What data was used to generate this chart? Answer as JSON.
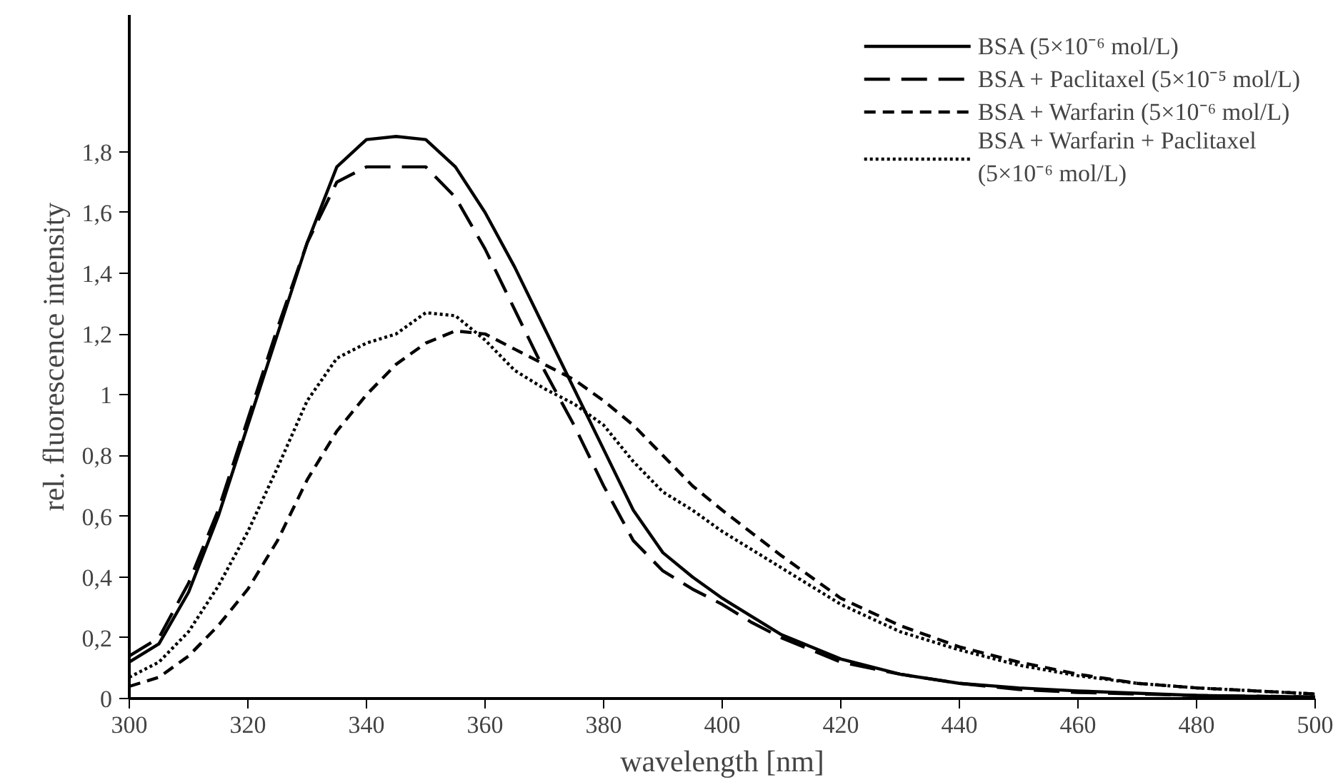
{
  "chart_data": {
    "type": "line",
    "xlabel": "wavelength [nm]",
    "ylabel": "rel. fluorescence intensity",
    "xlim": [
      300,
      500
    ],
    "ylim": [
      0,
      2.25
    ],
    "xticks": [
      300,
      320,
      340,
      360,
      380,
      400,
      420,
      440,
      460,
      480,
      500
    ],
    "yticks": [
      0,
      {
        "value": 0.2,
        "label": "0,2"
      },
      {
        "value": 0.4,
        "label": "0,4"
      },
      {
        "value": 0.6,
        "label": "0,6"
      },
      {
        "value": 0.8,
        "label": "0,8"
      },
      1,
      {
        "value": 1.2,
        "label": "1,2"
      },
      {
        "value": 1.4,
        "label": "1,4"
      },
      {
        "value": 1.6,
        "label": "1,6"
      },
      {
        "value": 1.8,
        "label": "1,8"
      }
    ],
    "grid": false,
    "legend": "top right",
    "marker": "none",
    "x": [
      300,
      305,
      310,
      315,
      320,
      325,
      330,
      335,
      340,
      345,
      350,
      355,
      360,
      365,
      370,
      375,
      380,
      385,
      390,
      395,
      400,
      405,
      410,
      420,
      430,
      440,
      450,
      460,
      480,
      500
    ],
    "series": [
      {
        "name": "BSA (5×10⁻⁶ mol/L)",
        "color": "#000000",
        "line_style": "solid",
        "values": [
          0.12,
          0.18,
          0.35,
          0.6,
          0.9,
          1.2,
          1.5,
          1.75,
          1.84,
          1.85,
          1.84,
          1.75,
          1.6,
          1.42,
          1.22,
          1.02,
          0.82,
          0.62,
          0.48,
          0.4,
          0.33,
          0.27,
          0.21,
          0.13,
          0.08,
          0.05,
          0.035,
          0.025,
          0.01,
          0.005
        ]
      },
      {
        "name": "BSA + Paclitaxel (5×10⁻⁵ mol/L)",
        "color": "#000000",
        "line_style": "longdash",
        "values": [
          0.14,
          0.2,
          0.38,
          0.62,
          0.92,
          1.22,
          1.5,
          1.7,
          1.75,
          1.75,
          1.75,
          1.65,
          1.48,
          1.28,
          1.08,
          0.9,
          0.7,
          0.52,
          0.42,
          0.36,
          0.31,
          0.25,
          0.2,
          0.12,
          0.08,
          0.05,
          0.03,
          0.02,
          0.01,
          0.005
        ]
      },
      {
        "name": "BSA + Warfarin (5×10⁻⁶ mol/L)",
        "color": "#000000",
        "line_style": "dashed",
        "x": [
          300,
          305,
          310,
          315,
          320,
          325,
          330,
          335,
          340,
          345,
          350,
          355,
          360,
          365,
          370,
          375,
          380,
          385,
          390,
          395,
          400,
          410,
          420,
          430,
          440,
          450,
          460,
          470,
          480,
          490,
          500
        ],
        "values": [
          0.04,
          0.07,
          0.14,
          0.24,
          0.36,
          0.52,
          0.72,
          0.88,
          1.0,
          1.1,
          1.17,
          1.21,
          1.2,
          1.15,
          1.1,
          1.05,
          0.98,
          0.9,
          0.8,
          0.7,
          0.62,
          0.47,
          0.33,
          0.24,
          0.17,
          0.12,
          0.08,
          0.05,
          0.035,
          0.025,
          0.015
        ]
      },
      {
        "name": "BSA + Warfarin + Paclitaxel\n(5×10⁻⁶ mol/L)",
        "color": "#000000",
        "line_style": "dotted",
        "x": [
          300,
          305,
          310,
          315,
          320,
          325,
          330,
          335,
          340,
          345,
          350,
          355,
          360,
          365,
          370,
          375,
          380,
          385,
          390,
          395,
          400,
          410,
          420,
          430,
          440,
          450,
          460,
          470,
          480,
          490,
          500
        ],
        "values": [
          0.07,
          0.12,
          0.22,
          0.37,
          0.55,
          0.76,
          0.98,
          1.12,
          1.17,
          1.2,
          1.27,
          1.26,
          1.18,
          1.08,
          1.02,
          0.97,
          0.9,
          0.78,
          0.68,
          0.62,
          0.55,
          0.43,
          0.31,
          0.22,
          0.16,
          0.11,
          0.075,
          0.05,
          0.035,
          0.025,
          0.015
        ]
      }
    ]
  }
}
